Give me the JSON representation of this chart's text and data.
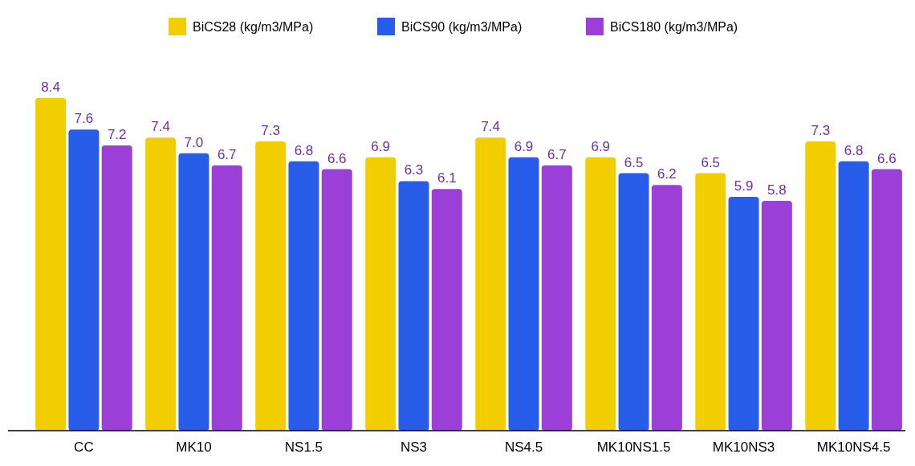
{
  "chart_data": {
    "type": "bar",
    "categories": [
      "CC",
      "MK10",
      "NS1.5",
      "NS3",
      "NS4.5",
      "MK10NS1.5",
      "MK10NS3",
      "MK10NS4.5"
    ],
    "series": [
      {
        "name": "BiCS28 (kg/m3/MPa)",
        "color": "#f2cd00",
        "values": [
          8.4,
          7.4,
          7.3,
          6.9,
          7.4,
          6.9,
          6.5,
          7.3
        ],
        "value_labels": [
          "8.4",
          "7.4",
          "7.3",
          "6.9",
          "7.4",
          "6.9",
          "6.5",
          "7.3"
        ]
      },
      {
        "name": "BiCS90 (kg/m3/MPa)",
        "color": "#285de9",
        "values": [
          7.6,
          7.0,
          6.8,
          6.3,
          6.9,
          6.5,
          5.9,
          6.8
        ],
        "value_labels": [
          "7.6",
          "7.0",
          "6.8",
          "6.3",
          "6.9",
          "6.5",
          "5.9",
          "6.8"
        ]
      },
      {
        "name": "BiCS180 (kg/m3/MPa)",
        "color": "#9b3fd8",
        "values": [
          7.2,
          6.7,
          6.6,
          6.1,
          6.7,
          6.2,
          5.8,
          6.6
        ],
        "value_labels": [
          "7.2",
          "6.7",
          "6.6",
          "6.1",
          "6.7",
          "6.2",
          "5.8",
          "6.6"
        ]
      }
    ],
    "legend": "top",
    "grid": false,
    "tick_labels": "x"
  }
}
